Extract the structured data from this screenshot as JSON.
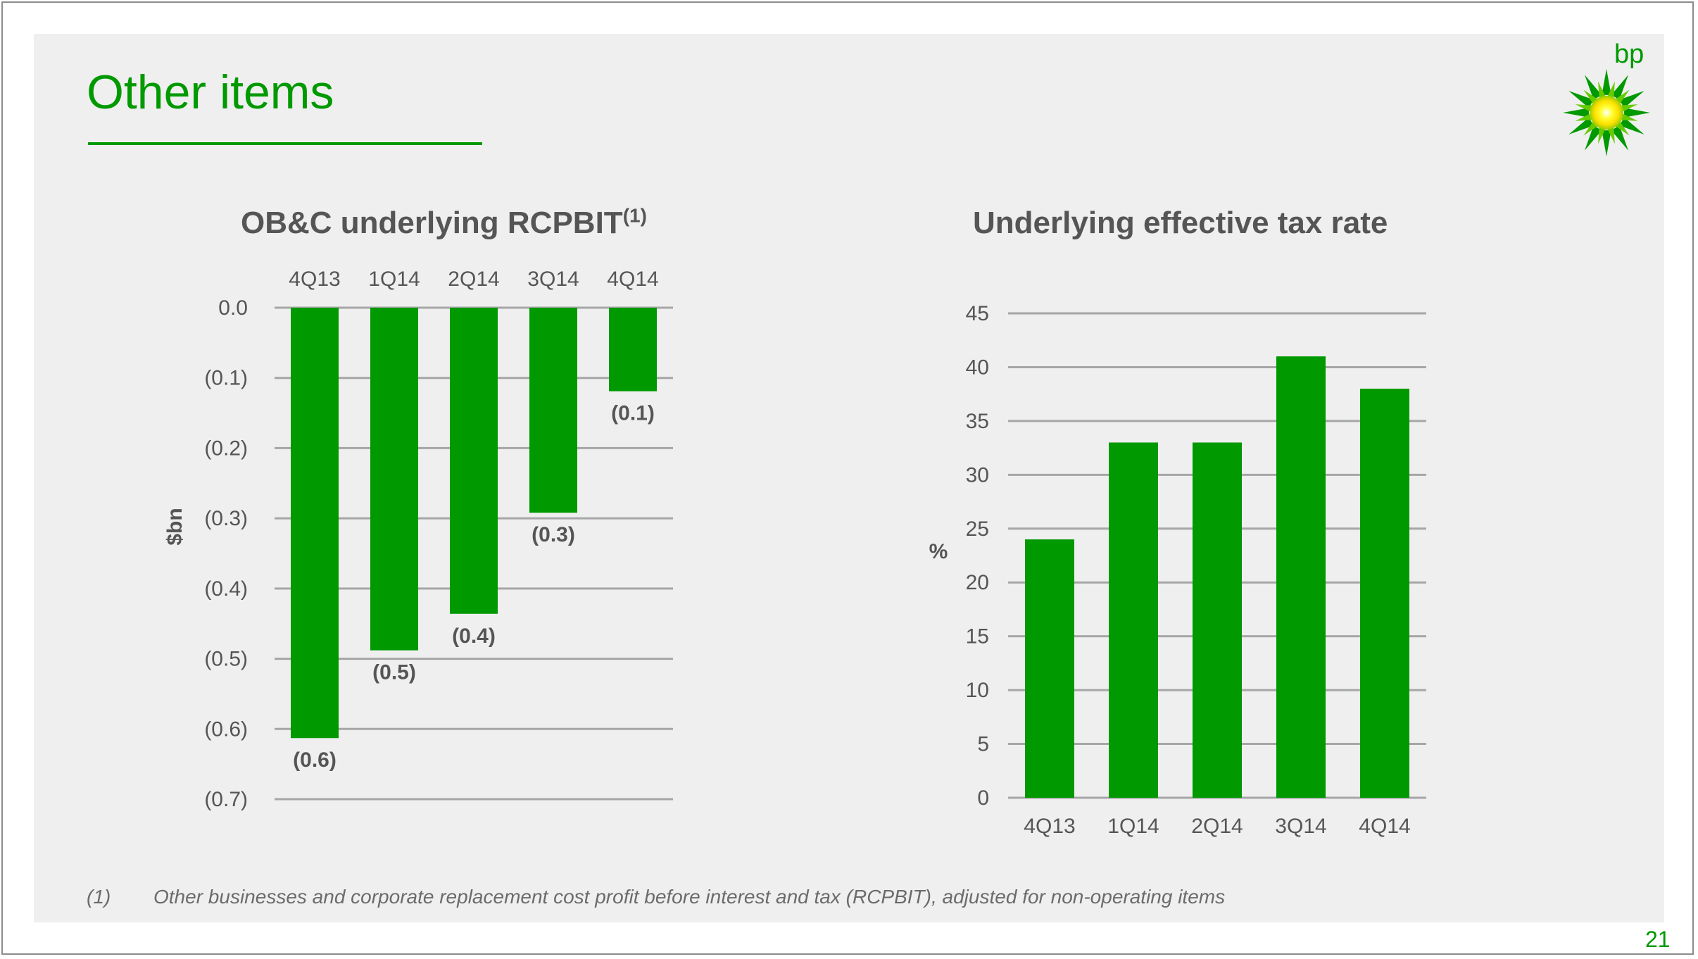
{
  "slide": {
    "title": "Other items",
    "page_number": "21",
    "logo_text": "bp",
    "footnote_marker": "(1)",
    "footnote_text": "Other businesses and corporate replacement cost profit before interest and tax (RCPBIT), adjusted for non-operating items",
    "colors": {
      "accent": "#009900",
      "grid": "#a6a6a6",
      "text": "#555555",
      "background": "#efefef"
    }
  },
  "chart_data": [
    {
      "type": "bar",
      "title": "OB&C underlying RCPBIT",
      "title_sup": "(1)",
      "categories": [
        "4Q13",
        "1Q14",
        "2Q14",
        "3Q14",
        "4Q14"
      ],
      "values": [
        -0.613,
        -0.488,
        -0.436,
        -0.292,
        -0.119
      ],
      "data_labels": [
        "(0.6)",
        "(0.5)",
        "(0.4)",
        "(0.3)",
        "(0.1)"
      ],
      "ylabel": "$bn",
      "ylim": [
        -0.7,
        0.0
      ],
      "yticks": [
        0.0,
        -0.1,
        -0.2,
        -0.3,
        -0.4,
        -0.5,
        -0.6,
        -0.7
      ],
      "ytick_labels": [
        "0.0",
        "(0.1)",
        "(0.2)",
        "(0.3)",
        "(0.4)",
        "(0.5)",
        "(0.6)",
        "(0.7)"
      ],
      "category_axis": "top",
      "grid": true,
      "color": "#009900"
    },
    {
      "type": "bar",
      "title": "Underlying effective tax rate",
      "categories": [
        "4Q13",
        "1Q14",
        "2Q14",
        "3Q14",
        "4Q14"
      ],
      "values": [
        24,
        33,
        33,
        41,
        38
      ],
      "ylabel": "%",
      "ylim": [
        0,
        45
      ],
      "yticks": [
        0,
        5,
        10,
        15,
        20,
        25,
        30,
        35,
        40,
        45
      ],
      "ytick_labels": [
        "0",
        "5",
        "10",
        "15",
        "20",
        "25",
        "30",
        "35",
        "40",
        "45"
      ],
      "category_axis": "bottom",
      "grid": true,
      "color": "#009900"
    }
  ]
}
